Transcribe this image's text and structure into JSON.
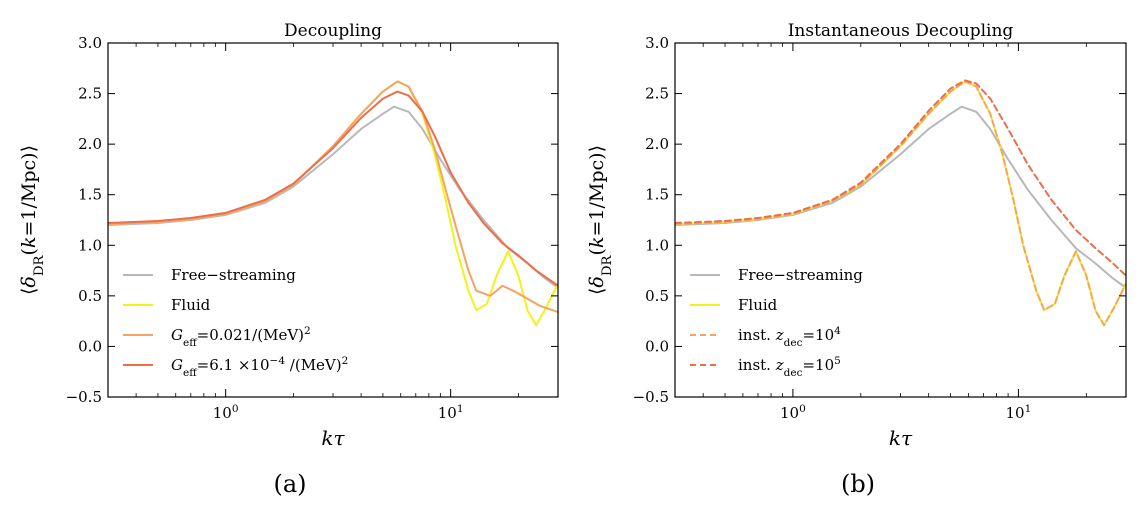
{
  "chart_data": [
    {
      "type": "line",
      "title": "Decoupling",
      "caption": "(a)",
      "xlabel": "kτ",
      "ylabel": "⟨δ_DR(k=1/Mpc)⟩",
      "xscale": "log",
      "xlim": [
        0.3,
        30
      ],
      "ylim": [
        -0.5,
        3.0
      ],
      "xticks": [
        {
          "value": 1,
          "base": "10",
          "exp": "0"
        },
        {
          "value": 10,
          "base": "10",
          "exp": "1"
        }
      ],
      "yticks": [
        {
          "value": -0.5,
          "label": "−0.5"
        },
        {
          "value": 0.0,
          "label": "0.0"
        },
        {
          "value": 0.5,
          "label": "0.5"
        },
        {
          "value": 1.0,
          "label": "1.0"
        },
        {
          "value": 1.5,
          "label": "1.5"
        },
        {
          "value": 2.0,
          "label": "2.0"
        },
        {
          "value": 2.5,
          "label": "2.5"
        },
        {
          "value": 3.0,
          "label": "3.0"
        }
      ],
      "legend_position": "lower-left",
      "series": [
        {
          "name": "Free−streaming",
          "color": "#b8b8b8",
          "dash": "solid",
          "x": [
            0.3,
            0.5,
            0.7,
            1.0,
            1.5,
            2.0,
            3.0,
            4.0,
            5.0,
            5.6,
            6.5,
            7.5,
            9.0,
            11.0,
            14.0,
            18.0,
            22.0,
            26.0,
            30.0
          ],
          "y": [
            1.2,
            1.22,
            1.25,
            1.3,
            1.42,
            1.58,
            1.9,
            2.15,
            2.3,
            2.37,
            2.32,
            2.15,
            1.85,
            1.55,
            1.25,
            0.97,
            0.82,
            0.68,
            0.58
          ]
        },
        {
          "name": "Fluid",
          "color": "#f2f21a",
          "dash": "solid",
          "x": [
            0.3,
            0.5,
            0.7,
            1.0,
            1.5,
            2.0,
            3.0,
            4.0,
            5.0,
            5.8,
            6.5,
            7.5,
            8.5,
            9.5,
            10.5,
            12.0,
            13.0,
            14.5,
            16.0,
            18.0,
            20.0,
            22.0,
            24.0,
            26.5,
            30.0
          ],
          "y": [
            1.21,
            1.23,
            1.26,
            1.31,
            1.44,
            1.6,
            1.98,
            2.3,
            2.52,
            2.62,
            2.57,
            2.3,
            1.9,
            1.45,
            1.0,
            0.55,
            0.36,
            0.42,
            0.7,
            0.94,
            0.7,
            0.35,
            0.21,
            0.38,
            0.62
          ]
        },
        {
          "name": "G_eff=0.021/(MeV)^2",
          "color": "#f4a460",
          "dash": "solid",
          "x": [
            0.3,
            0.5,
            0.7,
            1.0,
            1.5,
            2.0,
            3.0,
            4.0,
            5.0,
            5.8,
            6.5,
            7.5,
            8.5,
            9.5,
            10.5,
            12.0,
            13.0,
            15.0,
            17.0,
            19.0,
            22.0,
            25.0,
            30.0
          ],
          "y": [
            1.21,
            1.23,
            1.26,
            1.31,
            1.44,
            1.6,
            1.98,
            2.3,
            2.52,
            2.62,
            2.57,
            2.32,
            1.95,
            1.55,
            1.2,
            0.75,
            0.55,
            0.5,
            0.6,
            0.55,
            0.47,
            0.4,
            0.34
          ]
        },
        {
          "name": "G_eff=6.1 ×10^-4 /(MeV)^2",
          "color": "#ee6d4a",
          "dash": "solid",
          "x": [
            0.3,
            0.5,
            0.7,
            1.0,
            1.5,
            2.0,
            3.0,
            4.0,
            5.0,
            5.8,
            6.5,
            7.5,
            8.5,
            10.0,
            12.0,
            14.0,
            17.0,
            20.0,
            24.0,
            30.0
          ],
          "y": [
            1.22,
            1.24,
            1.27,
            1.32,
            1.45,
            1.61,
            1.96,
            2.26,
            2.45,
            2.52,
            2.48,
            2.32,
            2.08,
            1.72,
            1.42,
            1.22,
            1.02,
            0.9,
            0.75,
            0.6
          ]
        }
      ],
      "legend": [
        {
          "label_parts": [
            [
              "",
              "Free−streaming"
            ]
          ],
          "color": "#b8b8b8",
          "dash": "solid"
        },
        {
          "label_parts": [
            [
              "",
              "Fluid"
            ]
          ],
          "color": "#f2f21a",
          "dash": "solid"
        },
        {
          "label_parts": [
            [
              "i",
              "G"
            ],
            [
              "sub",
              "eff"
            ],
            [
              "",
              "=0.021/(MeV)"
            ],
            [
              "sup",
              "2"
            ]
          ],
          "color": "#f4a460",
          "dash": "solid"
        },
        {
          "label_parts": [
            [
              "i",
              "G"
            ],
            [
              "sub",
              "eff"
            ],
            [
              "",
              "=6.1 ×10"
            ],
            [
              "sup",
              "−4"
            ],
            [
              "",
              " /(MeV)"
            ],
            [
              "sup",
              "2"
            ]
          ],
          "color": "#ee6d4a",
          "dash": "solid"
        }
      ]
    },
    {
      "type": "line",
      "title": "Instantaneous Decoupling",
      "caption": "(b)",
      "xlabel": "kτ",
      "ylabel": "⟨δ_DR(k=1/Mpc)⟩",
      "xscale": "log",
      "xlim": [
        0.3,
        30
      ],
      "ylim": [
        -0.5,
        3.0
      ],
      "xticks": [
        {
          "value": 1,
          "base": "10",
          "exp": "0"
        },
        {
          "value": 10,
          "base": "10",
          "exp": "1"
        }
      ],
      "yticks": [
        {
          "value": -0.5,
          "label": "−0.5"
        },
        {
          "value": 0.0,
          "label": "0.0"
        },
        {
          "value": 0.5,
          "label": "0.5"
        },
        {
          "value": 1.0,
          "label": "1.0"
        },
        {
          "value": 1.5,
          "label": "1.5"
        },
        {
          "value": 2.0,
          "label": "2.0"
        },
        {
          "value": 2.5,
          "label": "2.5"
        },
        {
          "value": 3.0,
          "label": "3.0"
        }
      ],
      "legend_position": "lower-left",
      "series": [
        {
          "name": "Free−streaming",
          "color": "#b8b8b8",
          "dash": "solid",
          "x": [
            0.3,
            0.5,
            0.7,
            1.0,
            1.5,
            2.0,
            3.0,
            4.0,
            5.0,
            5.6,
            6.5,
            7.5,
            9.0,
            11.0,
            14.0,
            18.0,
            22.0,
            26.0,
            30.0
          ],
          "y": [
            1.2,
            1.22,
            1.25,
            1.3,
            1.42,
            1.58,
            1.9,
            2.15,
            2.3,
            2.37,
            2.32,
            2.15,
            1.85,
            1.55,
            1.25,
            0.97,
            0.82,
            0.68,
            0.58
          ]
        },
        {
          "name": "Fluid",
          "color": "#f2f21a",
          "dash": "solid",
          "x": [
            0.3,
            0.5,
            0.7,
            1.0,
            1.5,
            2.0,
            3.0,
            4.0,
            5.0,
            5.8,
            6.5,
            7.5,
            8.5,
            9.5,
            10.5,
            12.0,
            13.0,
            14.5,
            16.0,
            18.0,
            20.0,
            22.0,
            24.0,
            26.5,
            30.0
          ],
          "y": [
            1.21,
            1.23,
            1.26,
            1.31,
            1.44,
            1.6,
            1.98,
            2.3,
            2.52,
            2.62,
            2.57,
            2.3,
            1.9,
            1.45,
            1.0,
            0.55,
            0.36,
            0.42,
            0.7,
            0.94,
            0.7,
            0.35,
            0.21,
            0.38,
            0.62
          ]
        },
        {
          "name": "inst. z_dec=10^4",
          "color": "#f4a460",
          "dash": "dashed",
          "x": [
            0.3,
            0.5,
            0.7,
            1.0,
            1.5,
            2.0,
            3.0,
            4.0,
            5.0,
            5.8,
            6.5,
            7.5,
            8.5,
            9.5,
            10.5,
            12.0,
            13.0,
            14.5,
            16.0,
            18.0,
            20.0,
            22.0,
            24.0,
            26.5,
            30.0
          ],
          "y": [
            1.21,
            1.23,
            1.26,
            1.31,
            1.44,
            1.6,
            1.98,
            2.3,
            2.52,
            2.62,
            2.57,
            2.3,
            1.9,
            1.45,
            1.0,
            0.55,
            0.36,
            0.42,
            0.7,
            0.94,
            0.7,
            0.35,
            0.21,
            0.38,
            0.62
          ]
        },
        {
          "name": "inst. z_dec=10^5",
          "color": "#ee6d4a",
          "dash": "dashed",
          "x": [
            0.3,
            0.5,
            0.7,
            1.0,
            1.5,
            2.0,
            3.0,
            4.0,
            5.0,
            5.8,
            6.5,
            7.5,
            9.0,
            11.0,
            14.0,
            18.0,
            22.0,
            26.0,
            30.0
          ],
          "y": [
            1.22,
            1.24,
            1.27,
            1.32,
            1.45,
            1.62,
            2.0,
            2.33,
            2.55,
            2.63,
            2.6,
            2.45,
            2.15,
            1.8,
            1.45,
            1.15,
            0.97,
            0.83,
            0.7
          ]
        }
      ],
      "legend": [
        {
          "label_parts": [
            [
              "",
              "Free−streaming"
            ]
          ],
          "color": "#b8b8b8",
          "dash": "solid"
        },
        {
          "label_parts": [
            [
              "",
              "Fluid"
            ]
          ],
          "color": "#f2f21a",
          "dash": "solid"
        },
        {
          "label_parts": [
            [
              "",
              "inst. "
            ],
            [
              "i",
              "z"
            ],
            [
              "sub",
              "dec"
            ],
            [
              "",
              "=10"
            ],
            [
              "sup",
              "4"
            ]
          ],
          "color": "#f4a460",
          "dash": "dashed"
        },
        {
          "label_parts": [
            [
              "",
              "inst. "
            ],
            [
              "i",
              "z"
            ],
            [
              "sub",
              "dec"
            ],
            [
              "",
              "=10"
            ],
            [
              "sup",
              "5"
            ]
          ],
          "color": "#ee6d4a",
          "dash": "dashed"
        }
      ]
    }
  ]
}
